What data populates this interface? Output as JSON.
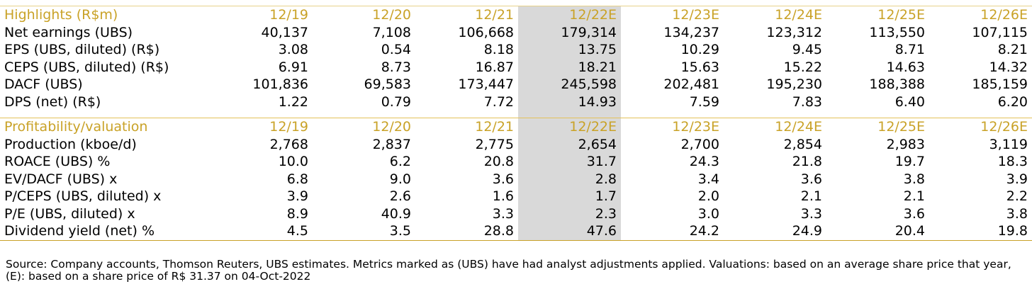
{
  "table1": {
    "title": "Highlights (R$m)",
    "years": [
      "12/19",
      "12/20",
      "12/21",
      "12/22E",
      "12/23E",
      "12/24E",
      "12/25E",
      "12/26E"
    ],
    "rows": [
      {
        "label": "Net earnings (UBS)",
        "values": [
          "40,137",
          "7,108",
          "106,668",
          "179,314",
          "134,237",
          "123,312",
          "113,550",
          "107,115"
        ]
      },
      {
        "label": "EPS (UBS, diluted) (R$)",
        "values": [
          "3.08",
          "0.54",
          "8.18",
          "13.75",
          "10.29",
          "9.45",
          "8.71",
          "8.21"
        ]
      },
      {
        "label": "CEPS (UBS, diluted) (R$)",
        "values": [
          "6.91",
          "8.73",
          "16.87",
          "18.21",
          "15.63",
          "15.22",
          "14.63",
          "14.32"
        ]
      },
      {
        "label": "DACF (UBS)",
        "values": [
          "101,836",
          "69,583",
          "173,447",
          "245,598",
          "202,481",
          "195,230",
          "188,388",
          "185,159"
        ]
      },
      {
        "label": "DPS (net) (R$)",
        "values": [
          "1.22",
          "0.79",
          "7.72",
          "14.93",
          "7.59",
          "7.83",
          "6.40",
          "6.20"
        ]
      }
    ]
  },
  "table2": {
    "title": "Profitability/valuation",
    "years": [
      "12/19",
      "12/20",
      "12/21",
      "12/22E",
      "12/23E",
      "12/24E",
      "12/25E",
      "12/26E"
    ],
    "rows": [
      {
        "label": "Production (kboe/d)",
        "values": [
          "2,768",
          "2,837",
          "2,775",
          "2,654",
          "2,700",
          "2,854",
          "2,983",
          "3,119"
        ]
      },
      {
        "label": "ROACE (UBS) %",
        "values": [
          "10.0",
          "6.2",
          "20.8",
          "31.7",
          "24.3",
          "21.8",
          "19.7",
          "18.3"
        ]
      },
      {
        "label": "EV/DACF (UBS) x",
        "values": [
          "6.8",
          "9.0",
          "3.6",
          "2.8",
          "3.4",
          "3.6",
          "3.8",
          "3.9"
        ]
      },
      {
        "label": "P/CEPS (UBS, diluted) x",
        "values": [
          "3.9",
          "2.6",
          "1.6",
          "1.7",
          "2.0",
          "2.1",
          "2.1",
          "2.2"
        ]
      },
      {
        "label": "P/E (UBS, diluted) x",
        "values": [
          "8.9",
          "40.9",
          "3.3",
          "2.3",
          "3.0",
          "3.3",
          "3.6",
          "3.8"
        ]
      },
      {
        "label": "Dividend yield (net) %",
        "values": [
          "4.5",
          "3.5",
          "28.8",
          "47.6",
          "24.2",
          "24.9",
          "20.4",
          "19.8"
        ]
      }
    ]
  },
  "source": "Source: Company accounts, Thomson Reuters, UBS estimates. Metrics marked as (UBS) have had analyst adjustments applied. Valuations: based on an average share price that year, (E): based on a share price of R$ 31.37 on 04-Oct-2022",
  "colors": {
    "header_gold": "#c9a227",
    "highlight_col": "#d9d9d9"
  }
}
